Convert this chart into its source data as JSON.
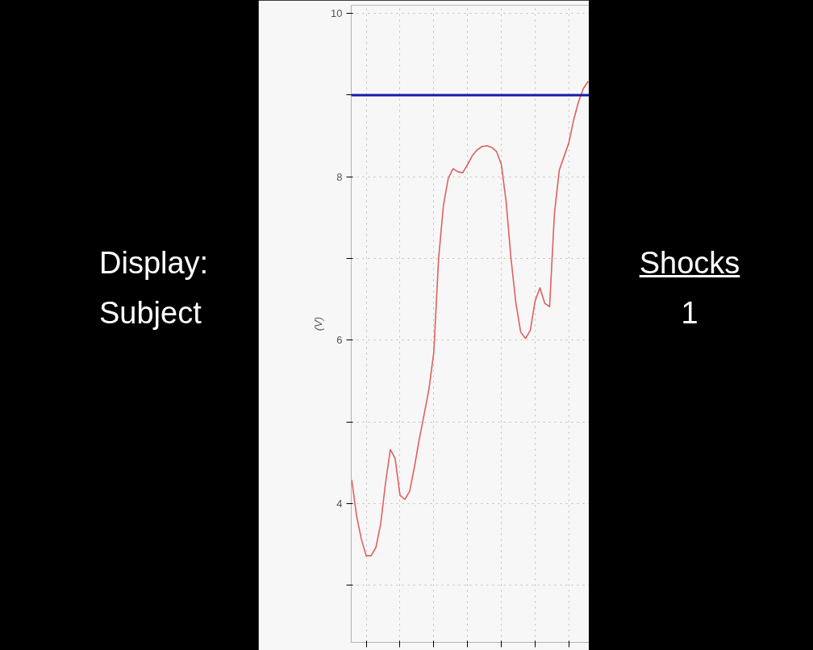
{
  "chart_data": {
    "type": "line",
    "ylabel": "(V)",
    "categories": [
      null,
      null,
      null,
      null,
      null,
      null,
      null,
      null,
      null,
      null,
      null,
      null,
      null,
      null,
      null,
      null,
      null,
      null,
      null,
      null,
      null,
      null,
      null,
      null,
      null,
      null,
      null,
      null,
      null,
      null,
      null,
      null,
      null,
      null,
      null,
      null,
      null,
      null,
      null,
      null,
      null,
      null,
      null,
      null,
      null,
      null,
      null,
      null,
      null,
      null
    ],
    "series": [
      {
        "color": "#e06060",
        "values": [
          4.29,
          3.85,
          3.56,
          3.36,
          3.36,
          3.46,
          3.75,
          4.25,
          4.66,
          4.55,
          4.1,
          4.05,
          4.15,
          4.45,
          4.79,
          5.09,
          5.4,
          5.85,
          7.0,
          7.65,
          7.98,
          8.1,
          8.06,
          8.05,
          8.15,
          8.26,
          8.33,
          8.37,
          8.38,
          8.36,
          8.31,
          8.15,
          7.69,
          7.0,
          6.46,
          6.1,
          6.02,
          6.12,
          6.48,
          6.64,
          6.45,
          6.41,
          7.55,
          8.08,
          8.25,
          8.42,
          8.7,
          8.92,
          9.08,
          9.17
        ]
      }
    ],
    "ylim": [
      2.3,
      10.1
    ],
    "yticks": [
      {
        "value": 3,
        "label": null
      },
      4,
      {
        "value": 5,
        "label": null
      },
      6,
      {
        "value": 7,
        "label": null
      },
      8,
      {
        "value": 9,
        "label": null
      },
      10
    ],
    "grid": true,
    "line_style": "solid",
    "marker": "none",
    "ref_lines": [
      {
        "axis": "y",
        "value": 9,
        "color": "#1a1aa8"
      }
    ],
    "annotations": [
      "Display:",
      "Subject",
      "Shocks",
      "1"
    ]
  }
}
